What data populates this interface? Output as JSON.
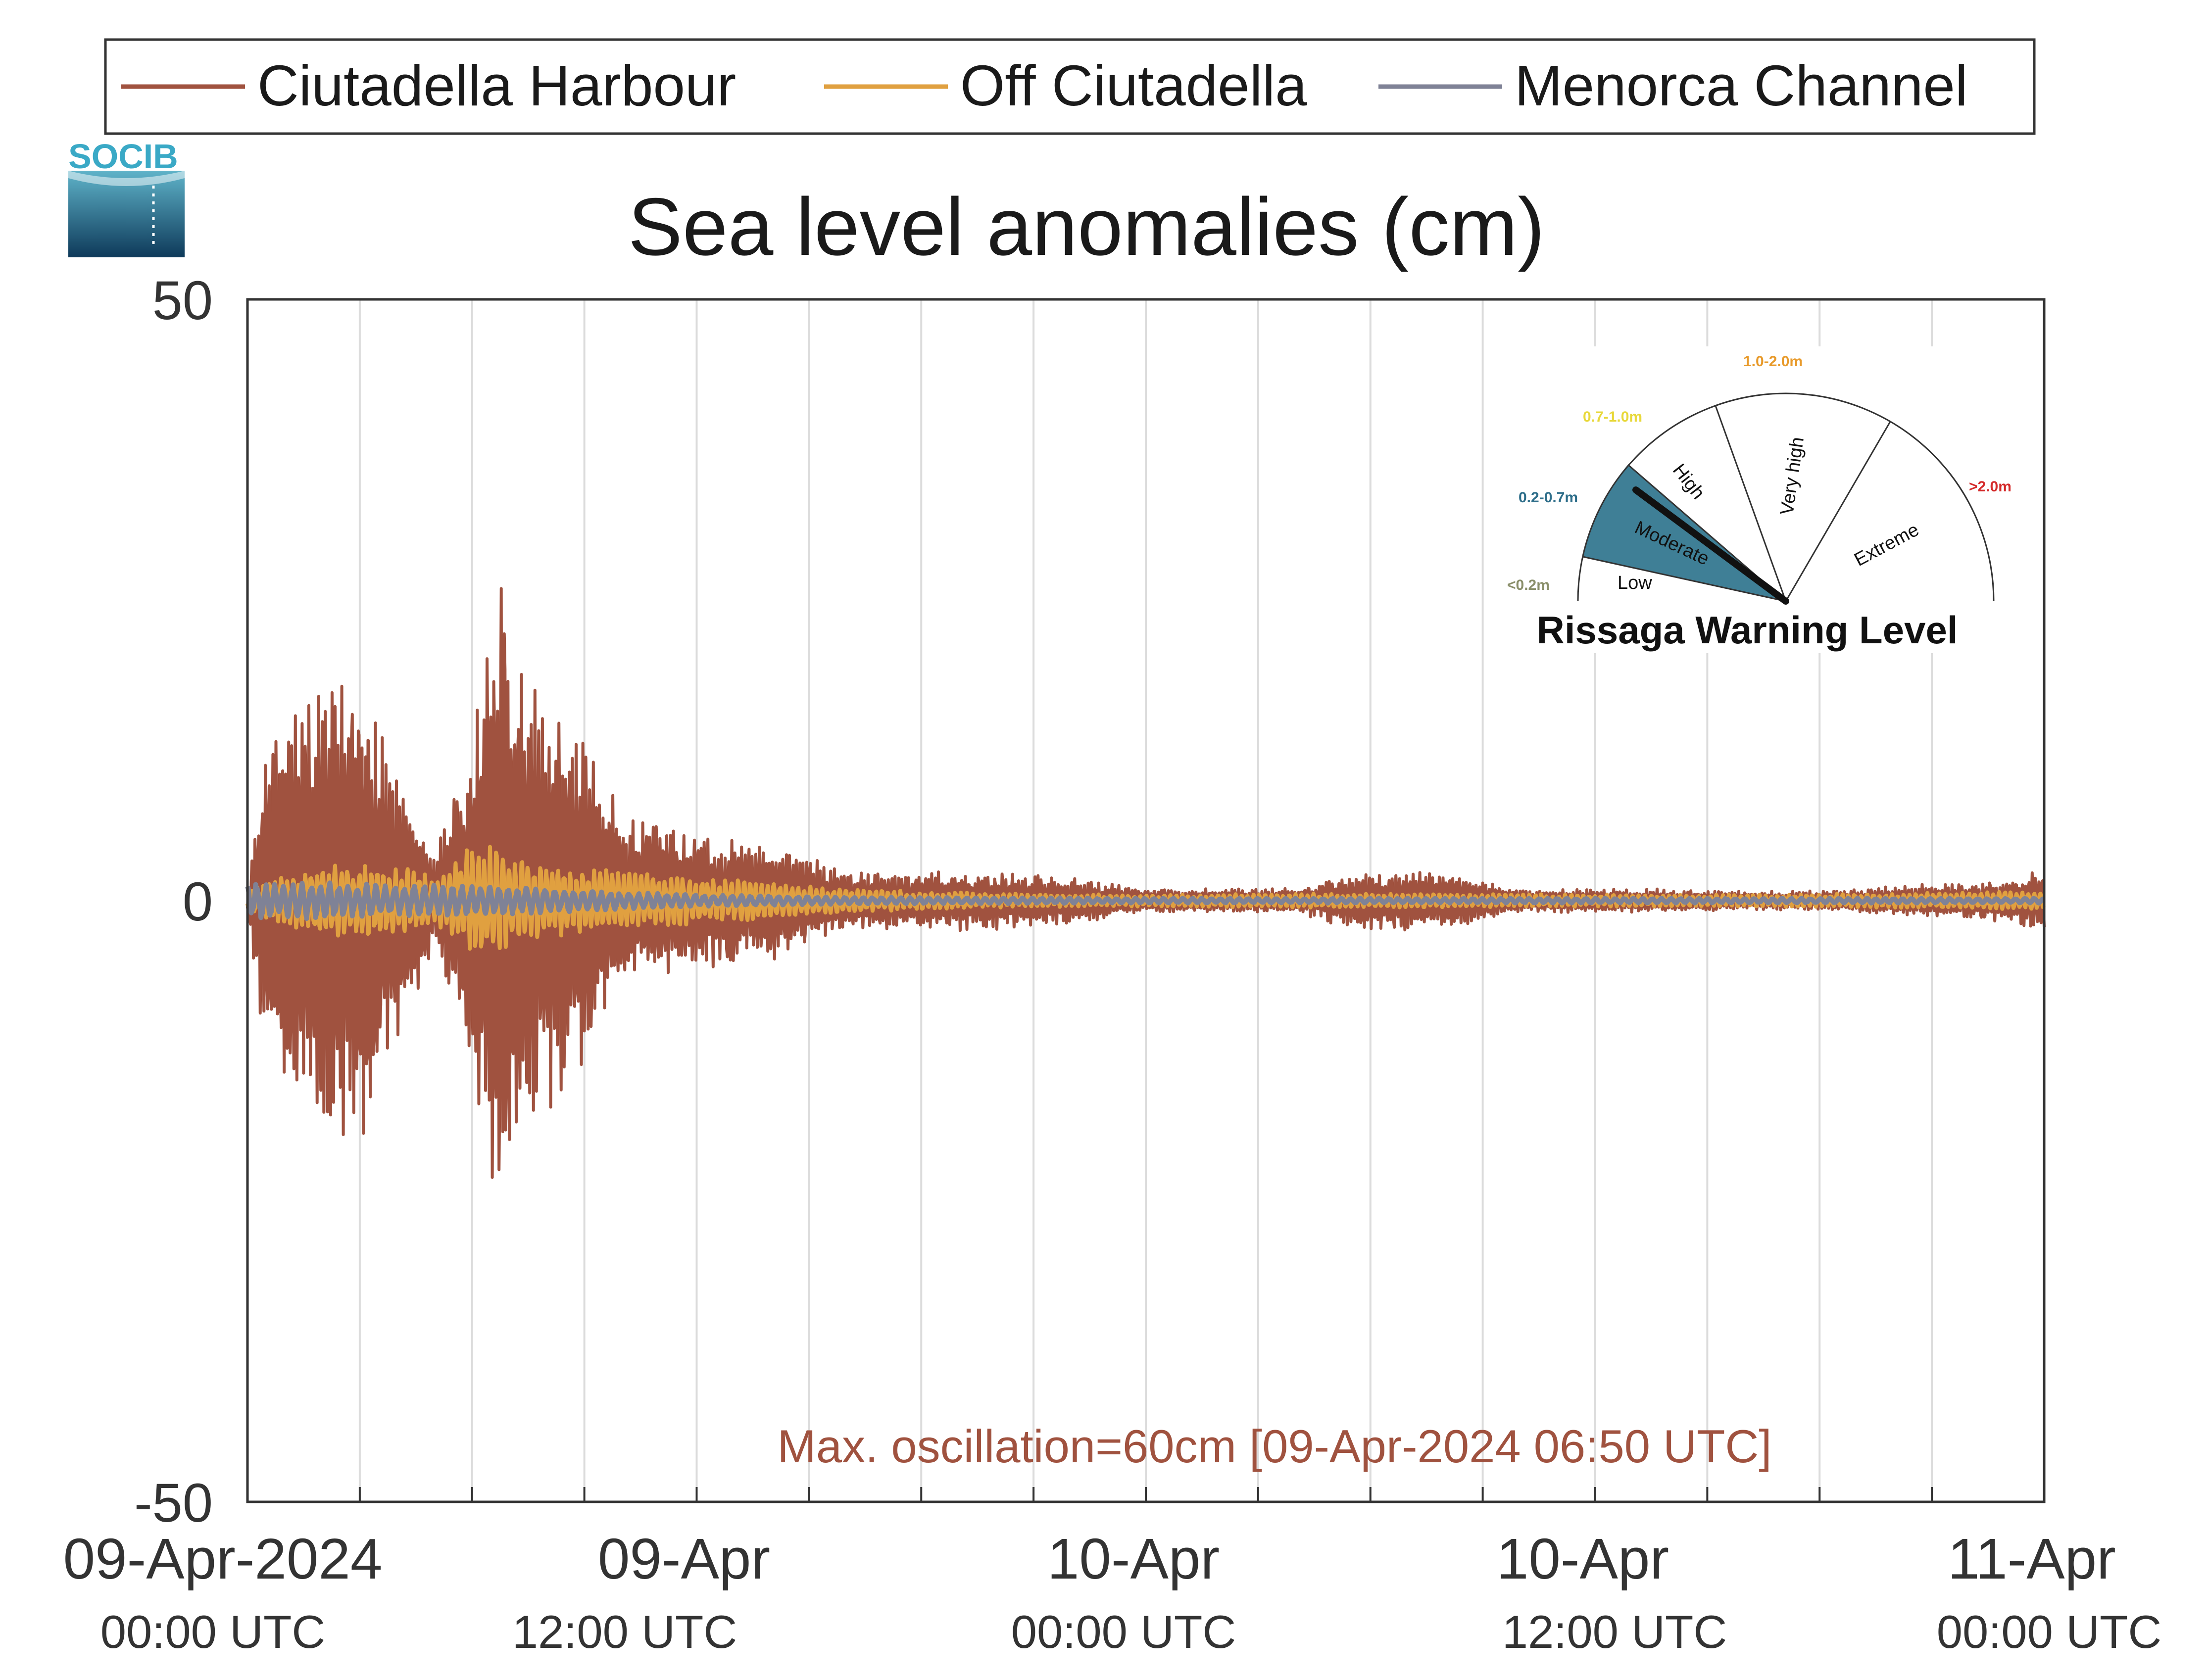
{
  "legend": {
    "items": [
      {
        "label": "Ciutadella Harbour",
        "color": "#a0523f"
      },
      {
        "label": "Off Ciutadella",
        "color": "#e0a040"
      },
      {
        "label": "Menorca Channel",
        "color": "#7f8296"
      }
    ]
  },
  "logo": {
    "text": "SOCIB"
  },
  "annotation": {
    "text": "Max. oscillation=60cm [09-Apr-2024 06:50 UTC]",
    "color": "#a0523f"
  },
  "gauge": {
    "title": "Rissaga Warning Level",
    "ranges": [
      {
        "range": "<0.2m",
        "label": "Low",
        "color": "#8a8f6a"
      },
      {
        "range": "0.2-0.7m",
        "label": "Moderate",
        "color": "#2e6e8a"
      },
      {
        "range": "0.7-1.0m",
        "label": "High",
        "color": "#e8d83a"
      },
      {
        "range": "1.0-2.0m",
        "label": "Very high",
        "color": "#e89a2a"
      },
      {
        "range": ">2.0m",
        "label": "Extreme",
        "color": "#d42a2a"
      }
    ],
    "active_level": "Moderate",
    "active_color": "#3f7f96"
  },
  "chart_data": {
    "type": "line",
    "title": "Sea level anomalies (cm)",
    "xlabel": "",
    "ylabel": "",
    "ylim": [
      -50,
      50
    ],
    "yticks": [
      -50,
      0,
      50
    ],
    "xlim_hours": [
      0,
      48
    ],
    "x_unit": "hours since 09-Apr-2024 00:00 UTC",
    "xtick_labels": [
      {
        "hour": 0,
        "date": "09-Apr-2024",
        "time": "00:00 UTC"
      },
      {
        "hour": 12,
        "date": "09-Apr",
        "time": "12:00 UTC"
      },
      {
        "hour": 24,
        "date": "10-Apr",
        "time": "00:00 UTC"
      },
      {
        "hour": 36,
        "date": "10-Apr",
        "time": "12:00 UTC"
      },
      {
        "hour": 48,
        "date": "11-Apr",
        "time": "00:00 UTC"
      }
    ],
    "grid": "vertical every 3 h",
    "series": [
      {
        "name": "Ciutadella Harbour",
        "color": "#a0523f",
        "envelope_hours": [
          0,
          0.5,
          1,
          2,
          3,
          4,
          5,
          6,
          6.8,
          7,
          8,
          9,
          10,
          11,
          12,
          13,
          14,
          16,
          18,
          20,
          22,
          24,
          26,
          28,
          29,
          30,
          31,
          32,
          34,
          36,
          38,
          40,
          42,
          44,
          46,
          48
        ],
        "envelope_cm": [
          1,
          14,
          18,
          20,
          22,
          12,
          4,
          14,
          30,
          26,
          18,
          14,
          8,
          7,
          6,
          5.5,
          5,
          2.5,
          2.5,
          2.5,
          2,
          1,
          1,
          1,
          2,
          2.5,
          2.5,
          2.5,
          1,
          1,
          1,
          0.8,
          0.8,
          1.3,
          1.5,
          2.5
        ]
      },
      {
        "name": "Off Ciutadella",
        "color": "#e0a040",
        "envelope_hours": [
          0,
          2,
          4,
          5,
          6,
          7,
          8,
          10,
          12,
          14,
          16,
          20,
          24,
          30,
          36,
          40,
          44,
          48
        ],
        "envelope_cm": [
          1,
          3,
          3,
          2,
          5,
          4,
          3,
          2.5,
          2,
          1.5,
          1,
          0.6,
          0.5,
          0.6,
          0.5,
          0.5,
          0.6,
          0.8
        ]
      },
      {
        "name": "Menorca Channel",
        "color": "#7f8296",
        "envelope_hours": [
          0,
          2,
          4,
          6,
          8,
          12,
          16,
          24,
          48
        ],
        "envelope_cm": [
          1.5,
          1.5,
          1.3,
          1.3,
          1,
          0.5,
          0.3,
          0.2,
          0.2
        ]
      }
    ],
    "annotations": [
      "Max. oscillation=60cm [09-Apr-2024 06:50 UTC]"
    ]
  }
}
